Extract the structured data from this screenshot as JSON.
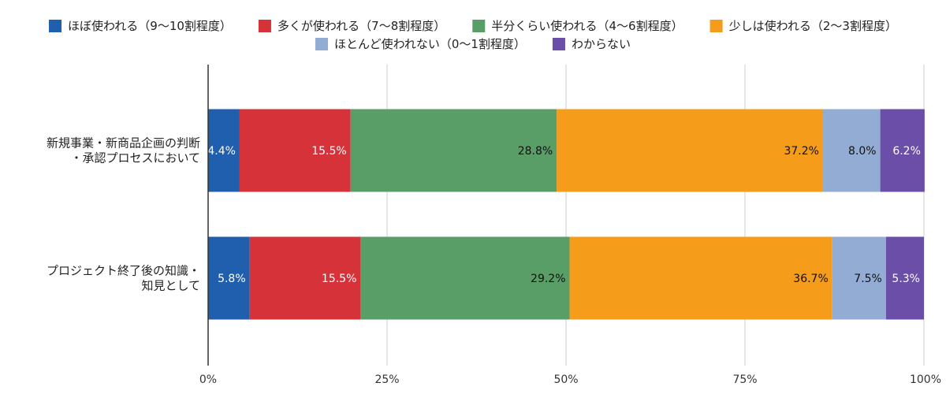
{
  "chart_data": {
    "type": "bar",
    "orientation": "horizontal",
    "stacked": "100%",
    "title": "",
    "xlabel": "",
    "ylabel": "",
    "xlim": [
      0,
      100
    ],
    "x_ticks": [
      "0%",
      "25%",
      "50%",
      "75%",
      "100%"
    ],
    "x_tick_values": [
      0,
      25,
      50,
      75,
      100
    ],
    "grid": true,
    "legend_position": "top",
    "categories": [
      [
        "新規事業・新商品企画の判断",
        "・承認プロセスにおいて"
      ],
      [
        "プロジェクト終了後の知識・",
        "知見として"
      ]
    ],
    "series": [
      {
        "name": "ほぼ使われる（9〜10割程度）",
        "color": "#1f5fad",
        "label_color": "#ffffff",
        "values": [
          4.4,
          5.8
        ],
        "labels": [
          "4.4%",
          "5.8%"
        ]
      },
      {
        "name": "多くが使われる（7〜8割程度）",
        "color": "#d6323a",
        "label_color": "#ffffff",
        "values": [
          15.5,
          15.5
        ],
        "labels": [
          "15.5%",
          "15.5%"
        ]
      },
      {
        "name": "半分くらい使われる（4〜6割程度）",
        "color": "#5a9e67",
        "label_color": "#111111",
        "values": [
          28.8,
          29.2
        ],
        "labels": [
          "28.8%",
          "29.2%"
        ]
      },
      {
        "name": "少しは使われる（2〜3割程度）",
        "color": "#f59c1a",
        "label_color": "#111111",
        "values": [
          37.2,
          36.7
        ],
        "labels": [
          "37.2%",
          "36.7%"
        ]
      },
      {
        "name": "ほとんど使われない（0〜1割程度）",
        "color": "#92acd4",
        "label_color": "#111111",
        "values": [
          8.0,
          7.5
        ],
        "labels": [
          "8.0%",
          "7.5%"
        ]
      },
      {
        "name": "わからない",
        "color": "#6a4ea8",
        "label_color": "#ffffff",
        "values": [
          6.2,
          5.3
        ],
        "labels": [
          "6.2%",
          "5.3%"
        ]
      }
    ]
  }
}
